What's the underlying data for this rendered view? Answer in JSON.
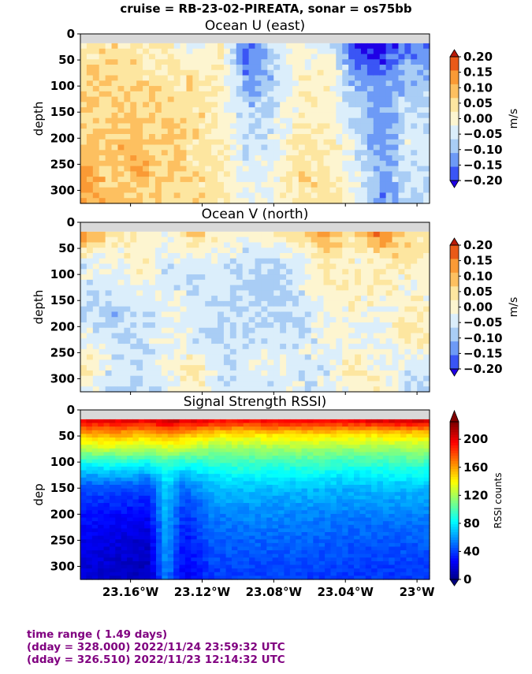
{
  "figure": {
    "suptitle": "cruise = RB-23-02-PIREATA,  sonar = os75bb",
    "time_range_lines": [
      "time range ( 1.49 days)",
      "(dday = 328.000) 2022/11/24 23:59:32 UTC",
      "(dday = 326.510) 2022/11/23 12:14:32 UTC"
    ],
    "footer_color": "#800080"
  },
  "chart_data": [
    {
      "type": "heatmap",
      "title": "Ocean U (east)",
      "xlabel": "",
      "ylabel": "depth",
      "xlim": [
        -23.188,
        -22.993
      ],
      "ylim": [
        325,
        0
      ],
      "y_ticks": [
        0,
        50,
        100,
        150,
        200,
        250,
        300
      ],
      "y_tick_labels": [
        "0",
        "50",
        "100",
        "150",
        "200",
        "250",
        "300"
      ],
      "x_ticks": [
        -23.16,
        -23.12,
        -23.08,
        -23.04,
        -23.0
      ],
      "show_x_tick_labels": false,
      "colorbar": {
        "label": "m/s",
        "min": -0.2,
        "max": 0.2,
        "ticks": [
          0.2,
          0.15,
          0.1,
          0.05,
          0.0,
          -0.05,
          -0.1,
          -0.15,
          -0.2
        ],
        "tick_labels": [
          "0.20",
          "0.15",
          "0.10",
          "0.05",
          "0.00",
          "−0.05",
          "−0.10",
          "−0.15",
          "−0.20"
        ],
        "levels": [
          "#1f00e6",
          "#3a55f5",
          "#6d9af6",
          "#a9cdf5",
          "#dbeefb",
          "#fdf5d0",
          "#fde6a0",
          "#fdc060",
          "#fa9a35",
          "#ea5a18",
          "#b91a08"
        ]
      },
      "surface_gap_depth": 18,
      "longitude_samples": [
        -23.185,
        -23.17,
        -23.155,
        -23.14,
        -23.125,
        -23.11,
        -23.095,
        -23.08,
        -23.065,
        -23.05,
        -23.035,
        -23.02,
        -23.005
      ],
      "depth_samples": [
        25,
        75,
        125,
        175,
        225,
        275,
        320
      ],
      "values": [
        [
          0.02,
          0.05,
          0.04,
          0.02,
          -0.05,
          0.03,
          -0.18,
          -0.05,
          -0.02,
          -0.02,
          -0.2,
          -0.22,
          -0.15
        ],
        [
          0.06,
          0.06,
          0.05,
          0.03,
          0.04,
          0.02,
          -0.14,
          -0.08,
          0.0,
          0.01,
          -0.12,
          -0.16,
          -0.1
        ],
        [
          0.07,
          0.06,
          0.06,
          0.05,
          0.05,
          0.01,
          -0.1,
          -0.07,
          0.01,
          0.0,
          -0.08,
          -0.15,
          -0.07
        ],
        [
          0.05,
          0.07,
          0.08,
          0.06,
          0.05,
          0.02,
          -0.07,
          -0.05,
          0.02,
          0.01,
          -0.06,
          -0.12,
          -0.05
        ],
        [
          0.08,
          0.09,
          0.1,
          0.06,
          0.04,
          0.03,
          -0.05,
          -0.04,
          0.04,
          0.03,
          -0.04,
          -0.14,
          -0.04
        ],
        [
          0.1,
          0.08,
          0.09,
          0.07,
          0.05,
          0.04,
          -0.04,
          -0.02,
          0.05,
          0.04,
          -0.02,
          -0.12,
          -0.05
        ],
        [
          0.11,
          0.08,
          0.07,
          0.06,
          0.04,
          0.04,
          -0.03,
          -0.01,
          0.03,
          0.05,
          -0.02,
          -0.14,
          -0.06
        ]
      ]
    },
    {
      "type": "heatmap",
      "title": "Ocean V (north)",
      "xlabel": "",
      "ylabel": "depth",
      "xlim": [
        -23.188,
        -22.993
      ],
      "ylim": [
        325,
        0
      ],
      "y_ticks": [
        0,
        50,
        100,
        150,
        200,
        250,
        300
      ],
      "y_tick_labels": [
        "0",
        "50",
        "100",
        "150",
        "200",
        "250",
        "300"
      ],
      "x_ticks": [
        -23.16,
        -23.12,
        -23.08,
        -23.04,
        -23.0
      ],
      "show_x_tick_labels": false,
      "colorbar": {
        "label": "m/s",
        "min": -0.2,
        "max": 0.2,
        "ticks": [
          0.2,
          0.15,
          0.1,
          0.05,
          0.0,
          -0.05,
          -0.1,
          -0.15,
          -0.2
        ],
        "tick_labels": [
          "0.20",
          "0.15",
          "0.10",
          "0.05",
          "0.00",
          "−0.05",
          "−0.10",
          "−0.15",
          "−0.20"
        ],
        "levels": [
          "#1f00e6",
          "#3a55f5",
          "#6d9af6",
          "#a9cdf5",
          "#dbeefb",
          "#fdf5d0",
          "#fde6a0",
          "#fdc060",
          "#fa9a35",
          "#ea5a18",
          "#b91a08"
        ]
      },
      "surface_gap_depth": 18,
      "longitude_samples": [
        -23.185,
        -23.17,
        -23.155,
        -23.14,
        -23.125,
        -23.11,
        -23.095,
        -23.08,
        -23.065,
        -23.05,
        -23.035,
        -23.02,
        -23.005
      ],
      "depth_samples": [
        25,
        75,
        125,
        175,
        225,
        275,
        320
      ],
      "values": [
        [
          0.15,
          0.02,
          0.03,
          -0.02,
          0.08,
          0.02,
          -0.03,
          0.02,
          0.04,
          0.12,
          0.03,
          0.16,
          0.05
        ],
        [
          -0.04,
          -0.03,
          0.02,
          -0.05,
          -0.04,
          -0.04,
          -0.06,
          -0.08,
          -0.03,
          0.02,
          0.0,
          0.01,
          0.03
        ],
        [
          -0.05,
          -0.04,
          -0.03,
          -0.04,
          -0.06,
          -0.05,
          -0.07,
          -0.1,
          -0.04,
          0.01,
          0.02,
          0.02,
          -0.02
        ],
        [
          -0.06,
          -0.1,
          -0.05,
          -0.04,
          -0.03,
          -0.07,
          -0.06,
          -0.06,
          -0.05,
          -0.02,
          0.0,
          -0.03,
          0.02
        ],
        [
          -0.03,
          -0.05,
          -0.06,
          -0.03,
          -0.04,
          -0.08,
          -0.05,
          -0.04,
          -0.06,
          -0.02,
          -0.03,
          -0.04,
          0.03
        ],
        [
          0.03,
          -0.04,
          -0.05,
          -0.02,
          0.04,
          -0.06,
          -0.04,
          -0.03,
          -0.04,
          -0.04,
          0.05,
          -0.03,
          -0.05
        ],
        [
          -0.04,
          -0.06,
          -0.08,
          -0.04,
          0.03,
          -0.05,
          -0.05,
          -0.04,
          -0.05,
          -0.04,
          -0.02,
          0.02,
          -0.06
        ]
      ]
    },
    {
      "type": "heatmap",
      "title": "Signal Strength RSSI)",
      "xlabel": "",
      "ylabel": "dep",
      "xlim": [
        -23.188,
        -22.993
      ],
      "ylim": [
        325,
        0
      ],
      "y_ticks": [
        0,
        50,
        100,
        150,
        200,
        250,
        300
      ],
      "y_tick_labels": [
        "0",
        "50",
        "100",
        "150",
        "200",
        "250",
        "300"
      ],
      "x_ticks": [
        -23.16,
        -23.12,
        -23.08,
        -23.04,
        -23.0
      ],
      "x_tick_labels": [
        "23.16°W",
        "23.12°W",
        "23.08°W",
        "23.04°W",
        "23°W"
      ],
      "show_x_tick_labels": true,
      "colorbar": {
        "label": "RSSI counts",
        "min": 0,
        "max": 225,
        "ticks": [
          200,
          160,
          120,
          80,
          40,
          0
        ],
        "tick_labels": [
          "200",
          "160",
          "120",
          "80",
          "40",
          "0"
        ],
        "colormap": "jet"
      },
      "surface_gap_depth": 18,
      "longitude_samples": [
        -23.185,
        -23.165,
        -23.15,
        -23.14,
        -23.13,
        -23.115,
        -23.1,
        -23.08,
        -23.06,
        -23.04,
        -23.02,
        -23.005
      ],
      "depth_samples": [
        20,
        45,
        75,
        100,
        125,
        150,
        200,
        250,
        300,
        320
      ],
      "values": [
        [
          200,
          205,
          200,
          210,
          205,
          200,
          195,
          200,
          198,
          200,
          205,
          210
        ],
        [
          160,
          162,
          158,
          165,
          160,
          150,
          148,
          150,
          152,
          150,
          148,
          150
        ],
        [
          125,
          128,
          120,
          130,
          125,
          118,
          118,
          118,
          120,
          116,
          118,
          120
        ],
        [
          90,
          92,
          88,
          100,
          92,
          96,
          100,
          98,
          100,
          96,
          98,
          100
        ],
        [
          65,
          68,
          62,
          85,
          68,
          80,
          84,
          82,
          84,
          80,
          82,
          84
        ],
        [
          45,
          46,
          42,
          75,
          50,
          68,
          72,
          70,
          70,
          68,
          70,
          70
        ],
        [
          32,
          30,
          28,
          70,
          38,
          55,
          58,
          58,
          58,
          56,
          56,
          56
        ],
        [
          24,
          20,
          18,
          65,
          30,
          48,
          50,
          50,
          50,
          48,
          48,
          48
        ],
        [
          20,
          16,
          14,
          60,
          26,
          42,
          44,
          44,
          44,
          42,
          42,
          42
        ],
        [
          18,
          15,
          12,
          58,
          24,
          40,
          42,
          42,
          42,
          40,
          40,
          40
        ]
      ]
    }
  ]
}
